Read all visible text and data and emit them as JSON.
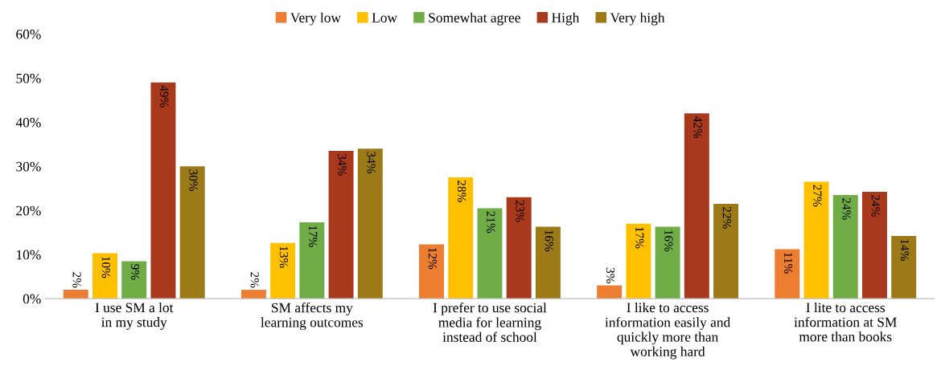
{
  "chart_data": {
    "type": "bar",
    "categories": [
      "I use SM a lot\nin my study",
      "SM affects my\nlearning outcomes",
      "I prefer to use social\nmedia for learning\ninstead of school",
      "I like to access\ninformation easily and\nquickly more than\nworking hard",
      "I lite to access\ninformation at SM\nmore than books"
    ],
    "series": [
      {
        "name": "Very low",
        "color": "#ed7d31",
        "values": [
          2,
          2,
          12.3,
          3,
          11.2
        ],
        "value_labels": [
          "2%",
          "2%",
          "12%",
          "3%",
          "11%"
        ]
      },
      {
        "name": "Low",
        "color": "#ffc000",
        "values": [
          10.3,
          12.6,
          27.5,
          17,
          26.5
        ],
        "value_labels": [
          "10%",
          "13%",
          "28%",
          "17%",
          "27%"
        ]
      },
      {
        "name": "Somewhat agree",
        "color": "#70ad47",
        "values": [
          8.5,
          17.3,
          20.5,
          16.3,
          23.5
        ],
        "value_labels": [
          "9%",
          "17%",
          "21%",
          "16%",
          "24%"
        ]
      },
      {
        "name": "High",
        "color": "#a9391c",
        "values": [
          49,
          33.5,
          23,
          42,
          24.2
        ],
        "value_labels": [
          "49%",
          "34%",
          "23%",
          "42%",
          "24%"
        ]
      },
      {
        "name": "Very high",
        "color": "#9c7a17",
        "values": [
          30,
          34,
          16.3,
          21.5,
          14.2
        ],
        "value_labels": [
          "30%",
          "34%",
          "16%",
          "22%",
          "14%"
        ]
      }
    ],
    "ylim": [
      0,
      60
    ],
    "yticks": [
      {
        "value": 0,
        "label": "0%"
      },
      {
        "value": 10,
        "label": "10%"
      },
      {
        "value": 20,
        "label": "20%"
      },
      {
        "value": 30,
        "label": "30%"
      },
      {
        "value": 40,
        "label": "40%"
      },
      {
        "value": 50,
        "label": "50%"
      },
      {
        "value": 60,
        "label": "60%"
      }
    ],
    "grid": false,
    "legend": "top"
  }
}
